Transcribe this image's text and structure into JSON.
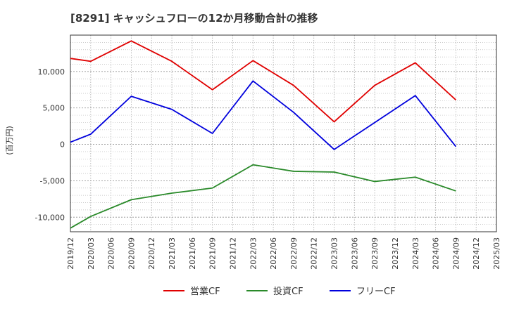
{
  "chart_data": {
    "type": "line",
    "title": "[8291]  キャッシュフローの12か月移動合計の推移",
    "ylabel": "(百万円)",
    "xlabel": "",
    "ylim": [
      -12000,
      15000
    ],
    "yticks": [
      -10000,
      -5000,
      0,
      5000,
      10000
    ],
    "ytick_labels": [
      "-10,000",
      "-5,000",
      "0",
      "5,000",
      "10,000"
    ],
    "categories": [
      "2019/12",
      "2020/03",
      "2020/06",
      "2020/09",
      "2020/12",
      "2021/03",
      "2021/06",
      "2021/09",
      "2021/12",
      "2022/03",
      "2022/06",
      "2022/09",
      "2022/12",
      "2023/03",
      "2023/06",
      "2023/09",
      "2023/12",
      "2024/03",
      "2024/06",
      "2024/09",
      "2024/12",
      "2025/03"
    ],
    "grid": true,
    "legend_position": "bottom",
    "series": [
      {
        "name": "営業CF",
        "color": "#e00000",
        "values": [
          11800,
          11400,
          null,
          14200,
          null,
          11400,
          null,
          7500,
          null,
          11500,
          null,
          8100,
          null,
          3100,
          null,
          8100,
          null,
          11200,
          null,
          6100,
          null,
          null
        ]
      },
      {
        "name": "投資CF",
        "color": "#2a8a2a",
        "values": [
          -11500,
          -9900,
          null,
          -7600,
          null,
          -6700,
          null,
          -6000,
          null,
          -2800,
          null,
          -3700,
          null,
          -3800,
          null,
          -5100,
          null,
          -4500,
          null,
          -6400,
          null,
          null
        ]
      },
      {
        "name": "フリーCF",
        "color": "#0000dd",
        "values": [
          300,
          1400,
          null,
          6600,
          null,
          4800,
          null,
          1500,
          null,
          8700,
          null,
          4400,
          null,
          -700,
          null,
          3000,
          null,
          6700,
          null,
          -300,
          null,
          null
        ]
      }
    ]
  }
}
